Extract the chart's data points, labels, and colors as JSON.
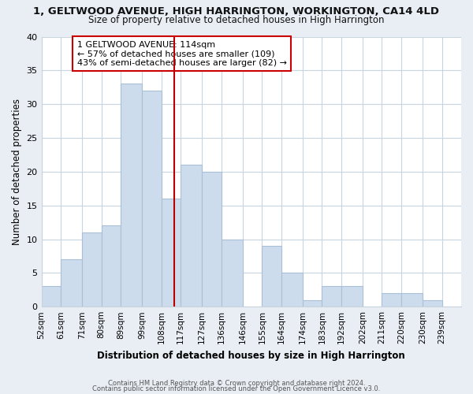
{
  "title": "1, GELTWOOD AVENUE, HIGH HARRINGTON, WORKINGTON, CA14 4LD",
  "subtitle": "Size of property relative to detached houses in High Harrington",
  "xlabel": "Distribution of detached houses by size in High Harrington",
  "ylabel": "Number of detached properties",
  "bin_labels": [
    "52sqm",
    "61sqm",
    "71sqm",
    "80sqm",
    "89sqm",
    "99sqm",
    "108sqm",
    "117sqm",
    "127sqm",
    "136sqm",
    "146sqm",
    "155sqm",
    "164sqm",
    "174sqm",
    "183sqm",
    "192sqm",
    "202sqm",
    "211sqm",
    "220sqm",
    "230sqm",
    "239sqm"
  ],
  "bin_edges": [
    52,
    61,
    71,
    80,
    89,
    99,
    108,
    117,
    127,
    136,
    146,
    155,
    164,
    174,
    183,
    192,
    202,
    211,
    220,
    230,
    239
  ],
  "counts": [
    3,
    7,
    11,
    12,
    33,
    32,
    16,
    21,
    20,
    10,
    0,
    9,
    5,
    1,
    3,
    3,
    0,
    2,
    2,
    1,
    0
  ],
  "bar_color": "#cddcec",
  "bar_edge_color": "#aac0d8",
  "vline_x": 114,
  "vline_color": "#bb0000",
  "annotation_line1": "1 GELTWOOD AVENUE: 114sqm",
  "annotation_line2": "← 57% of detached houses are smaller (109)",
  "annotation_line3": "43% of semi-detached houses are larger (82) →",
  "annotation_box_color": "#ffffff",
  "annotation_box_edge_color": "#cc0000",
  "ylim": [
    0,
    40
  ],
  "yticks": [
    0,
    5,
    10,
    15,
    20,
    25,
    30,
    35,
    40
  ],
  "bg_color": "#e8eef4",
  "plot_bg_color": "#ffffff",
  "grid_color": "#c8d4de",
  "footer1": "Contains HM Land Registry data © Crown copyright and database right 2024.",
  "footer2": "Contains public sector information licensed under the Open Government Licence v3.0."
}
